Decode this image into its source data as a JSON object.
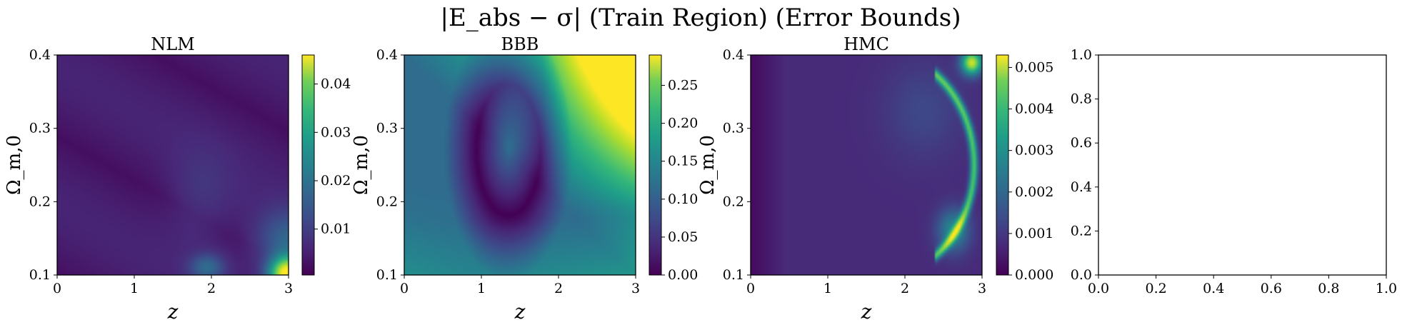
{
  "figure": {
    "title": "|E_abs − σ| (Train Region) (Error Bounds)"
  },
  "chart_data": [
    {
      "type": "heatmap",
      "title": "NLM",
      "xlabel": "z",
      "ylabel": "Ω_m,0",
      "xlim": [
        0,
        3
      ],
      "ylim": [
        0.1,
        0.4
      ],
      "xticks": [
        "0",
        "1",
        "2",
        "3"
      ],
      "yticks": [
        "0.1",
        "0.2",
        "0.3",
        "0.4"
      ],
      "colorbar": {
        "min": 0.0005,
        "max": 0.046,
        "ticks": [
          "0.01",
          "0.02",
          "0.03",
          "0.04"
        ],
        "tick_values": [
          0.01,
          0.02,
          0.03,
          0.04
        ]
      },
      "colormap": "viridis",
      "description_values": {
        "max_region": "bottom-right corner (z≈3, Ω≈0.1)",
        "peak": 0.046
      }
    },
    {
      "type": "heatmap",
      "title": "BBB",
      "xlabel": "z",
      "ylabel": "Ω_m,0",
      "xlim": [
        0,
        3
      ],
      "ylim": [
        0.1,
        0.4
      ],
      "xticks": [
        "0",
        "1",
        "2",
        "3"
      ],
      "yticks": [
        "0.1",
        "0.2",
        "0.3",
        "0.4"
      ],
      "colorbar": {
        "min": 0.0,
        "max": 0.29,
        "ticks": [
          "0.00",
          "0.05",
          "0.10",
          "0.15",
          "0.20",
          "0.25"
        ],
        "tick_values": [
          0.0,
          0.05,
          0.1,
          0.15,
          0.2,
          0.25
        ]
      },
      "colormap": "viridis",
      "description_values": {
        "max_region": "top-right corner (z≈3, Ω≈0.4)",
        "peak": 0.29
      }
    },
    {
      "type": "heatmap",
      "title": "HMC",
      "xlabel": "z",
      "ylabel": "Ω_m,0",
      "xlim": [
        0,
        3
      ],
      "ylim": [
        0.1,
        0.4
      ],
      "xticks": [
        "0",
        "1",
        "2",
        "3"
      ],
      "yticks": [
        "0.1",
        "0.2",
        "0.3",
        "0.4"
      ],
      "colorbar": {
        "min": 0.0,
        "max": 0.0053,
        "ticks": [
          "0.000",
          "0.001",
          "0.002",
          "0.003",
          "0.004",
          "0.005"
        ],
        "tick_values": [
          0.0,
          0.001,
          0.002,
          0.003,
          0.004,
          0.005
        ]
      },
      "colormap": "viridis",
      "description_values": {
        "max_region": "top-right corner (z≈3, Ω≈0.4)",
        "peak": 0.0053
      }
    },
    {
      "type": "empty",
      "xlim": [
        0,
        1
      ],
      "ylim": [
        0,
        1
      ],
      "xticks": [
        "0.0",
        "0.2",
        "0.4",
        "0.6",
        "0.8",
        "1.0"
      ],
      "yticks": [
        "0.0",
        "0.2",
        "0.4",
        "0.6",
        "0.8",
        "1.0"
      ]
    }
  ]
}
